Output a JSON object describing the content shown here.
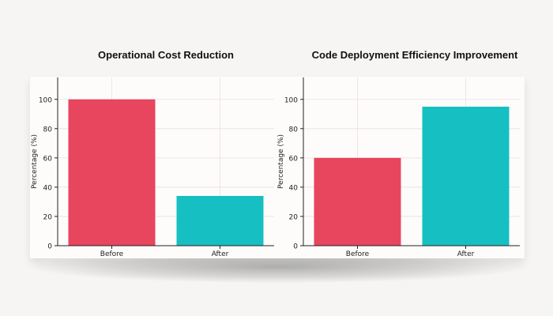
{
  "chart_data": [
    {
      "type": "bar",
      "title": "Operational Cost Reduction",
      "xlabel": "",
      "ylabel": "Percentage (%)",
      "categories": [
        "Before",
        "After"
      ],
      "values": [
        100,
        34
      ],
      "colors": [
        "#e8455e",
        "#16bfc1"
      ],
      "ylim": [
        0,
        115
      ],
      "yticks": [
        0,
        20,
        40,
        60,
        80,
        100
      ],
      "grid": true
    },
    {
      "type": "bar",
      "title": "Code Deployment Efficiency Improvement",
      "xlabel": "",
      "ylabel": "Percentage (%)",
      "categories": [
        "Before",
        "After"
      ],
      "values": [
        60,
        95
      ],
      "colors": [
        "#e8455e",
        "#16bfc1"
      ],
      "ylim": [
        0,
        115
      ],
      "yticks": [
        0,
        20,
        40,
        60,
        80,
        100
      ],
      "grid": true
    }
  ]
}
